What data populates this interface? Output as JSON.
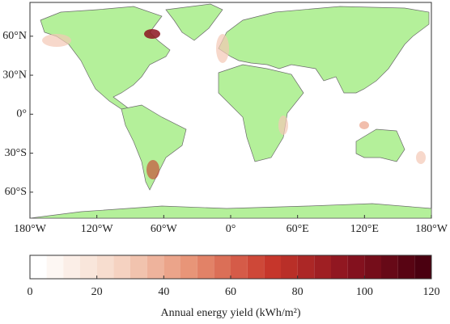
{
  "map": {
    "xlim": [
      -180,
      180
    ],
    "ylim": [
      -80,
      86
    ],
    "xticks": [
      {
        "value": -180,
        "label": "180°W"
      },
      {
        "value": -120,
        "label": "120°W"
      },
      {
        "value": -60,
        "label": "60°W"
      },
      {
        "value": 0,
        "label": "0°"
      },
      {
        "value": 60,
        "label": "60°E"
      },
      {
        "value": 120,
        "label": "120°E"
      },
      {
        "value": 180,
        "label": "180°W"
      }
    ],
    "yticks": [
      {
        "value": 60,
        "label": "60°N"
      },
      {
        "value": 30,
        "label": "30°N"
      },
      {
        "value": 0,
        "label": "0°"
      },
      {
        "value": -30,
        "label": "30°S"
      },
      {
        "value": -60,
        "label": "60°S"
      }
    ]
  },
  "colorbar": {
    "label": "Annual energy yield (kWh/m²)",
    "lim": [
      0,
      120
    ],
    "ticks": [
      0,
      20,
      40,
      60,
      80,
      100,
      120
    ],
    "levels": [
      0,
      5,
      10,
      15,
      20,
      25,
      30,
      35,
      40,
      45,
      50,
      55,
      60,
      65,
      70,
      75,
      80,
      85,
      90,
      95,
      100,
      105,
      110,
      115,
      120
    ],
    "colors": [
      "#ffffff",
      "#f6d8c8",
      "#e79274",
      "#c9382b",
      "#8c1420",
      "#4a0010"
    ]
  }
}
